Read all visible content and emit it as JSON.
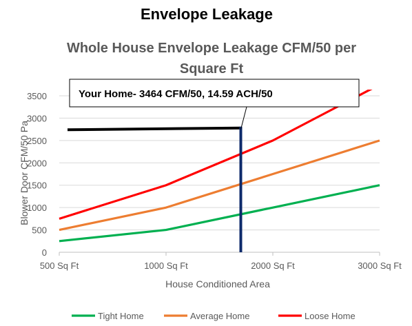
{
  "page_title": "Envelope Leakage",
  "chart_data": {
    "type": "line",
    "title": "Whole House Envelope Leakage CFM/50 per Square Ft",
    "xlabel": "House Conditioned Area",
    "ylabel": "Blower Door CFM/50 Pa",
    "categories": [
      "500 Sq Ft",
      "1000 Sq Ft",
      "2000 Sq Ft",
      "3000 Sq Ft"
    ],
    "ylim": [
      0,
      3500
    ],
    "yticks": [
      0,
      500,
      1000,
      1500,
      2000,
      2500,
      3000,
      3500
    ],
    "grid": true,
    "legend_position": "bottom",
    "series": [
      {
        "name": "Tight Home",
        "color": "#00b050",
        "values": [
          250,
          500,
          1000,
          1500
        ]
      },
      {
        "name": "Average Home",
        "color": "#ed7d31",
        "values": [
          500,
          1000,
          1750,
          2500
        ]
      },
      {
        "name": "Loose Home",
        "color": "#ff0000",
        "values": [
          750,
          1500,
          2500,
          3750
        ]
      }
    ],
    "annotation": {
      "text": "Your Home- 3464 CFM/50, 14.59 ACH/50",
      "marker_area": 1700,
      "horizontal_line_y": [
        2740,
        2780
      ],
      "vertical_line_color": "#0d2a6b",
      "horizontal_line_color": "#000000"
    }
  }
}
